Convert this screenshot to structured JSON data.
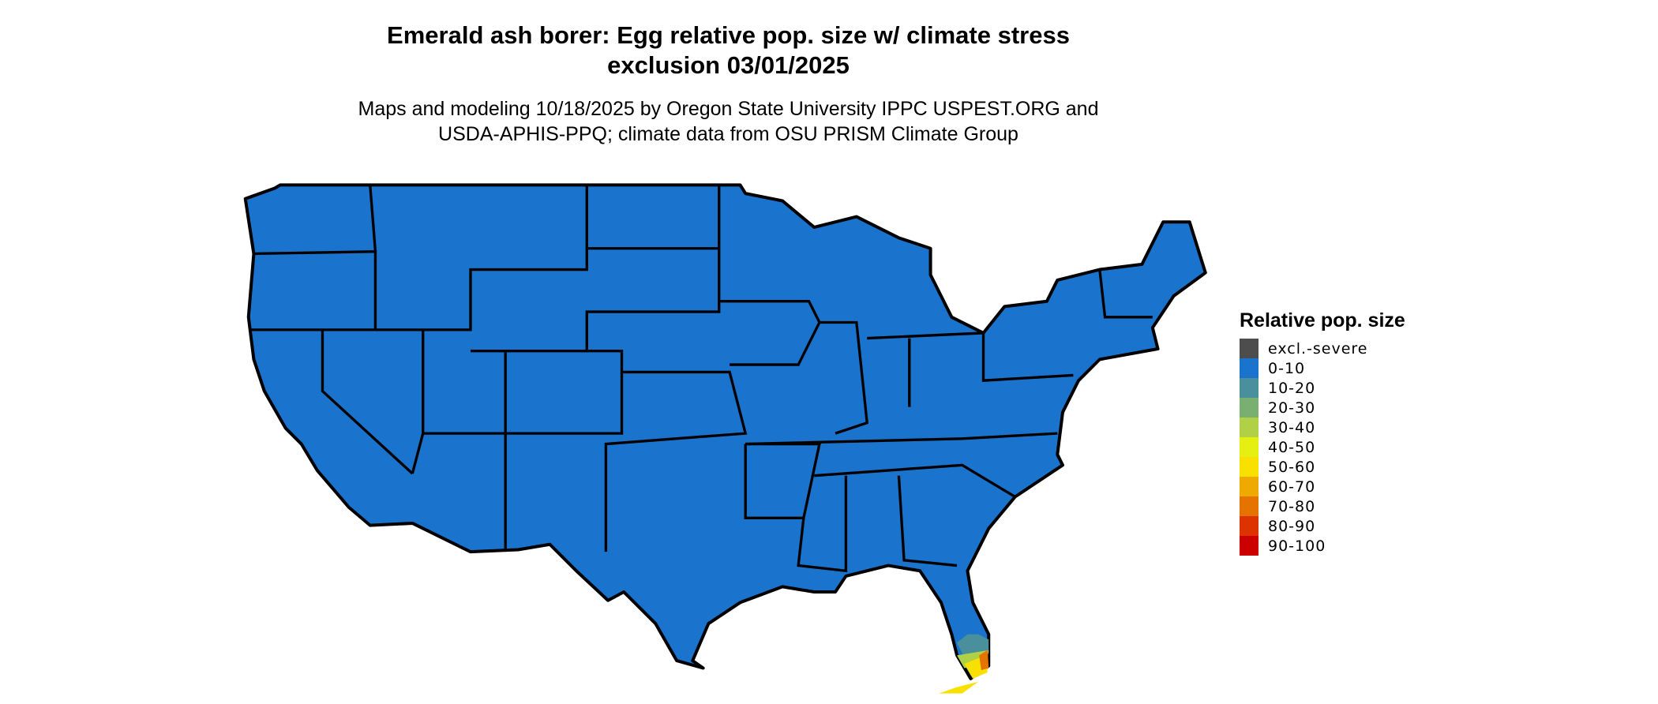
{
  "title": "Emerald ash borer: Egg relative pop. size w/ climate stress exclusion 03/01/2025",
  "title_line1": "Emerald ash borer: Egg relative pop. size w/ climate stress",
  "title_line2": "exclusion 03/01/2025",
  "subtitle_line1": "Maps and modeling 10/18/2025 by Oregon State University IPPC USPEST.ORG and",
  "subtitle_line2": "USDA-APHIS-PPQ; climate data from OSU PRISM Climate Group",
  "map": {
    "region": "Contiguous United States",
    "dominant_class": "0-10",
    "notes_visible": "South Florida shows higher classes (10-20 through 80-90)"
  },
  "legend": {
    "title": "Relative pop. size",
    "items": [
      {
        "label": "excl.-severe",
        "color": "#4d4d4d"
      },
      {
        "label": "0-10",
        "color": "#1a73cc"
      },
      {
        "label": "10-20",
        "color": "#4a8f9c"
      },
      {
        "label": "20-30",
        "color": "#7aaf72"
      },
      {
        "label": "30-40",
        "color": "#b0d146"
      },
      {
        "label": "40-50",
        "color": "#e6ef12"
      },
      {
        "label": "50-60",
        "color": "#f8e000"
      },
      {
        "label": "60-70",
        "color": "#eeaa00"
      },
      {
        "label": "70-80",
        "color": "#e57300"
      },
      {
        "label": "80-90",
        "color": "#dd3300"
      },
      {
        "label": "90-100",
        "color": "#cc0000"
      }
    ]
  }
}
